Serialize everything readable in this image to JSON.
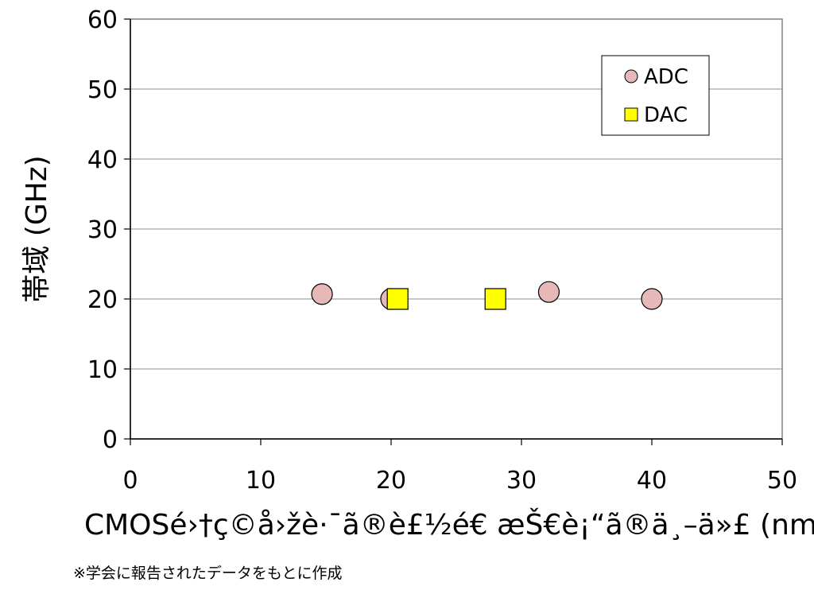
{
  "chart_data": {
    "type": "scatter",
    "xlabel": "CMOSé›†ç©å›žè·¯ã®è£½é€ æŠ€è¡“ã®ä¸–ä»£ (nm)",
    "ylabel": "帯域 (GHz)",
    "xlim": [
      0,
      50
    ],
    "ylim": [
      0,
      60
    ],
    "x_ticks": [
      "0",
      "10",
      "20",
      "30",
      "40",
      "50"
    ],
    "y_ticks": [
      "0",
      "10",
      "20",
      "30",
      "40",
      "50",
      "60"
    ],
    "grid": "horizontal",
    "legend_position": "top-right",
    "series": [
      {
        "name": "ADC",
        "marker": "circle",
        "color": "#e6b8b8",
        "points": [
          {
            "x": 14.7,
            "y": 20.7
          },
          {
            "x": 20.0,
            "y": 20.0
          },
          {
            "x": 32.1,
            "y": 21.0
          },
          {
            "x": 40.0,
            "y": 20.0
          }
        ]
      },
      {
        "name": "DAC",
        "marker": "square",
        "color": "#ffff00",
        "points": [
          {
            "x": 20.5,
            "y": 20.0
          },
          {
            "x": 28.0,
            "y": 20.0
          }
        ]
      }
    ]
  },
  "footnote": "※学会に報告されたデータをもとに作成"
}
